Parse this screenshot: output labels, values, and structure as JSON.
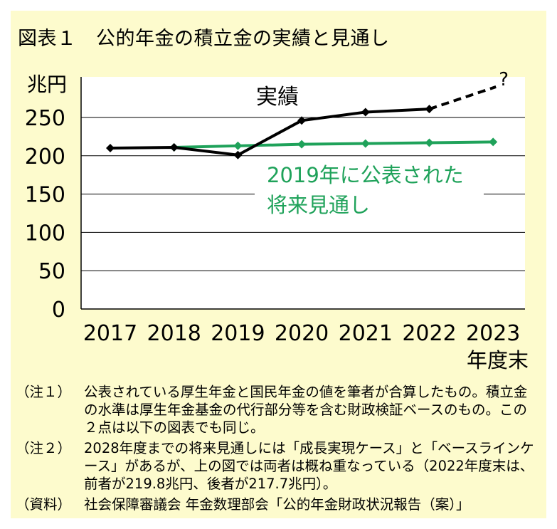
{
  "title": "図表１　公的年金の積立金の実績と見通し",
  "chart_data": {
    "type": "line",
    "unit_label": "兆円",
    "x_end_label": "年度末",
    "categories": [
      "2017",
      "2018",
      "2019",
      "2020",
      "2021",
      "2022",
      "2023"
    ],
    "ylim": [
      0,
      250
    ],
    "yticks": [
      "0",
      "50",
      "100",
      "150",
      "200",
      "250"
    ],
    "grid": true,
    "series": [
      {
        "name": "実績",
        "color": "#000000",
        "values": [
          210,
          211,
          201,
          246,
          257,
          261,
          null
        ],
        "projection_to": {
          "category": "2023",
          "value": 290,
          "label": "?"
        }
      },
      {
        "name": "2019年に公表された将来見通し",
        "color": "#1fa25a",
        "marker_color": "#1fa25a",
        "values": [
          null,
          211,
          213,
          215,
          216,
          217,
          218
        ]
      }
    ],
    "annotations": [
      {
        "text": "実績",
        "color": "#000000"
      },
      {
        "text": "2019年に公表された",
        "color": "#1fa25a"
      },
      {
        "text": "将来見通し",
        "color": "#1fa25a"
      }
    ]
  },
  "notes": [
    {
      "tag": "（注１）",
      "text": "公表されている厚生年金と国民年金の値を筆者が合算したもの。積立金の水準は厚生年金基金の代行部分等を含む財政検証ベースのもの。この２点は以下の図表でも同じ。"
    },
    {
      "tag": "（注２）",
      "text": "2028年度までの将来見通しには「成長実現ケース」と「ベースラインケース」があるが、上の図では両者は概ね重なっている（2022年度末は、前者が219.8兆円、後者が217.7兆円）。"
    },
    {
      "tag": "（資料）",
      "text": "社会保障審議会 年金数理部会「公的年金財政状況報告（案）」"
    }
  ]
}
